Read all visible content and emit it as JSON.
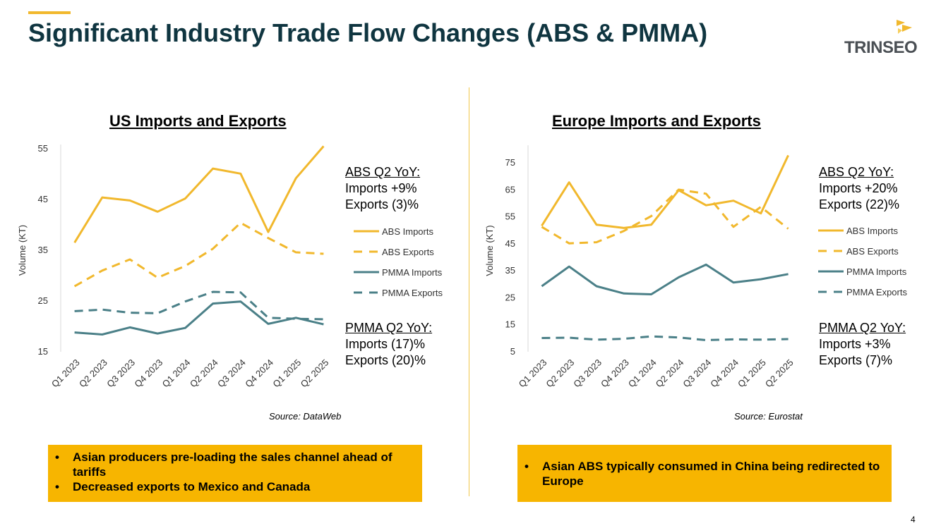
{
  "header": {
    "title": "Significant Industry Trade Flow Changes (ABS & PMMA)"
  },
  "logo": {
    "text": "TRINSEO",
    "registered": "."
  },
  "colors": {
    "abs": "#f1b82d",
    "pmma": "#4b8088",
    "title": "#0f3540",
    "callout": "#f7b500"
  },
  "us": {
    "title": "US Imports and Exports",
    "abs_note": {
      "heading": "ABS Q2 YoY:",
      "line1": "Imports +9%",
      "line2": "Exports (3)%"
    },
    "pmma_note": {
      "heading": "PMMA Q2 YoY:",
      "line1": "Imports (17)%",
      "line2": "Exports (20)%"
    },
    "source": "Source: DataWeb",
    "callout": [
      "Asian producers pre-loading the sales channel ahead of tariffs",
      "Decreased exports to Mexico and Canada"
    ]
  },
  "europe": {
    "title": "Europe Imports and Exports",
    "abs_note": {
      "heading": "ABS Q2 YoY:",
      "line1": "Imports +20%",
      "line2": "Exports (22)%"
    },
    "pmma_note": {
      "heading": "PMMA Q2 YoY:",
      "line1": "Imports +3%",
      "line2": "Exports (7)%"
    },
    "source": "Source: Eurostat",
    "callout": [
      "Asian ABS typically consumed in China being redirected to Europe"
    ]
  },
  "page_number": "4",
  "chart_data": [
    {
      "type": "line",
      "title": "US Imports and Exports",
      "xlabel": "",
      "ylabel": "Volume (KT)",
      "ylim": [
        15,
        55
      ],
      "yticks": [
        15,
        25,
        35,
        45,
        55
      ],
      "categories": [
        "Q1 2023",
        "Q2 2023",
        "Q3 2023",
        "Q4 2023",
        "Q1 2024",
        "Q2 2024",
        "Q3 2024",
        "Q4 2024",
        "Q1 2025",
        "Q2 2025"
      ],
      "series": [
        {
          "name": "ABS Imports",
          "style": "solid",
          "color": "#f1b82d",
          "values": [
            36.5,
            45.4,
            44.8,
            42.6,
            45.2,
            51.1,
            50.1,
            38.6,
            49.2,
            55.5
          ]
        },
        {
          "name": "ABS Exports",
          "style": "dashed",
          "color": "#f1b82d",
          "values": [
            27.9,
            31.0,
            33.2,
            29.6,
            31.9,
            35.3,
            40.4,
            37.4,
            34.6,
            34.3
          ]
        },
        {
          "name": "PMMA Imports",
          "style": "solid",
          "color": "#4b8088",
          "values": [
            18.8,
            18.4,
            19.8,
            18.6,
            19.7,
            24.5,
            24.9,
            20.5,
            21.7,
            20.4
          ]
        },
        {
          "name": "PMMA Exports",
          "style": "dashed",
          "color": "#4b8088",
          "values": [
            23.0,
            23.3,
            22.7,
            22.6,
            24.9,
            26.8,
            26.7,
            21.7,
            21.5,
            21.4
          ]
        }
      ]
    },
    {
      "type": "line",
      "title": "Europe Imports and Exports",
      "xlabel": "",
      "ylabel": "Volume (KT)",
      "ylim": [
        5,
        80
      ],
      "yticks": [
        5,
        15,
        25,
        35,
        45,
        55,
        65,
        75
      ],
      "categories": [
        "Q1 2023",
        "Q2 2023",
        "Q3 2023",
        "Q4 2023",
        "Q1 2024",
        "Q2 2024",
        "Q3 2024",
        "Q4 2024",
        "Q1 2025",
        "Q2 2025"
      ],
      "series": [
        {
          "name": "ABS Imports",
          "style": "solid",
          "color": "#f1b82d",
          "values": [
            51.7,
            67.8,
            52.1,
            50.9,
            52.1,
            64.9,
            59.3,
            61.0,
            56.3,
            77.8
          ]
        },
        {
          "name": "ABS Exports",
          "style": "dashed",
          "color": "#f1b82d",
          "values": [
            51.3,
            45.2,
            45.6,
            49.8,
            55.3,
            65.1,
            63.6,
            51.3,
            58.7,
            50.6
          ]
        },
        {
          "name": "PMMA Imports",
          "style": "solid",
          "color": "#4b8088",
          "values": [
            29.3,
            36.6,
            29.3,
            26.6,
            26.3,
            32.6,
            37.3,
            30.7,
            31.9,
            33.8
          ]
        },
        {
          "name": "PMMA Exports",
          "style": "dashed",
          "color": "#4b8088",
          "values": [
            10.1,
            10.2,
            9.5,
            9.8,
            10.7,
            10.3,
            9.3,
            9.6,
            9.5,
            9.7
          ]
        }
      ]
    }
  ]
}
